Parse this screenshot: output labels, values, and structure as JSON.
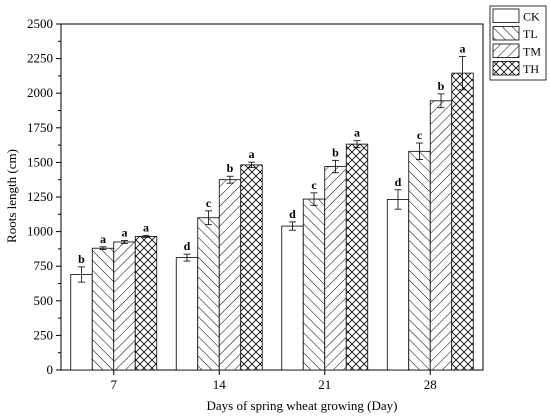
{
  "chart_data": {
    "type": "bar",
    "title": "",
    "xlabel": "Days of spring wheat growing (Day)",
    "ylabel": "Roots length (cm)",
    "ylim": [
      0,
      2500
    ],
    "yticks": [
      0,
      250,
      500,
      750,
      1000,
      1250,
      1500,
      1750,
      2000,
      2250,
      2500
    ],
    "categories": [
      "7",
      "14",
      "21",
      "28"
    ],
    "legend_position": "top-right",
    "grid": false,
    "series": [
      {
        "name": "CK",
        "pattern": "none",
        "values": [
          690,
          812,
          1040,
          1232
        ],
        "errors": [
          55,
          25,
          30,
          70
        ],
        "letters": [
          "b",
          "d",
          "d",
          "d"
        ]
      },
      {
        "name": "TL",
        "pattern": "diagonal-forward",
        "values": [
          880,
          1100,
          1235,
          1580
        ],
        "errors": [
          10,
          50,
          45,
          60
        ],
        "letters": [
          "a",
          "c",
          "c",
          "c"
        ]
      },
      {
        "name": "TM",
        "pattern": "diagonal-backward",
        "values": [
          925,
          1375,
          1470,
          1945
        ],
        "errors": [
          10,
          25,
          45,
          50
        ],
        "letters": [
          "a",
          "b",
          "b",
          "b"
        ]
      },
      {
        "name": "TH",
        "pattern": "crosshatch",
        "values": [
          965,
          1482,
          1632,
          2145
        ],
        "errors": [
          8,
          20,
          25,
          120
        ],
        "letters": [
          "a",
          "a",
          "a",
          "a"
        ]
      }
    ]
  }
}
